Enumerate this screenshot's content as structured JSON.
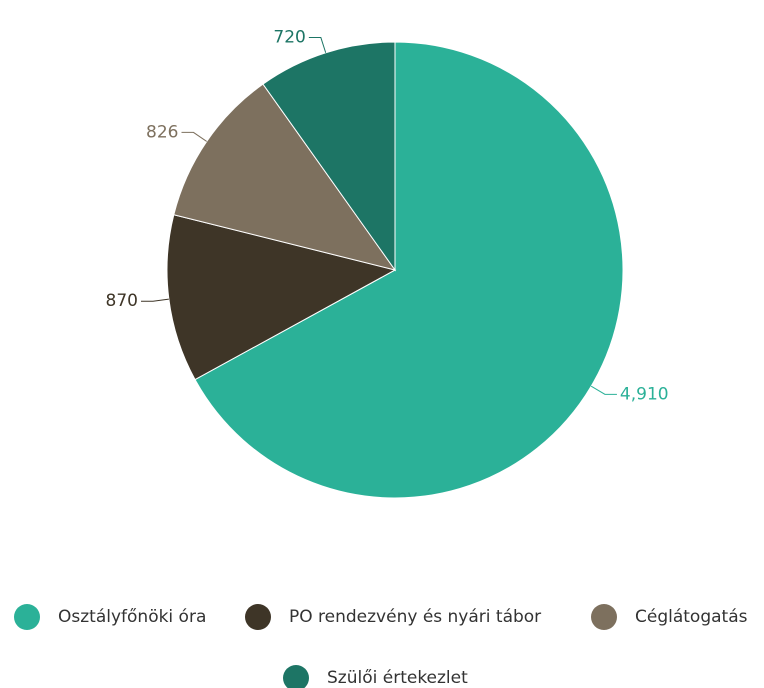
{
  "chart_data": {
    "type": "pie",
    "categories": [
      "Osztályfőnöki óra",
      "PO rendezvény és nyári tábor",
      "Céglátogatás",
      "Szülői értekezlet"
    ],
    "values": [
      4910,
      870,
      826,
      720
    ],
    "value_labels": [
      "4,910",
      "870",
      "826",
      "720"
    ],
    "colors": [
      "#2bb198",
      "#3e3527",
      "#7d705e",
      "#1d7565"
    ],
    "legend": "bottom"
  }
}
